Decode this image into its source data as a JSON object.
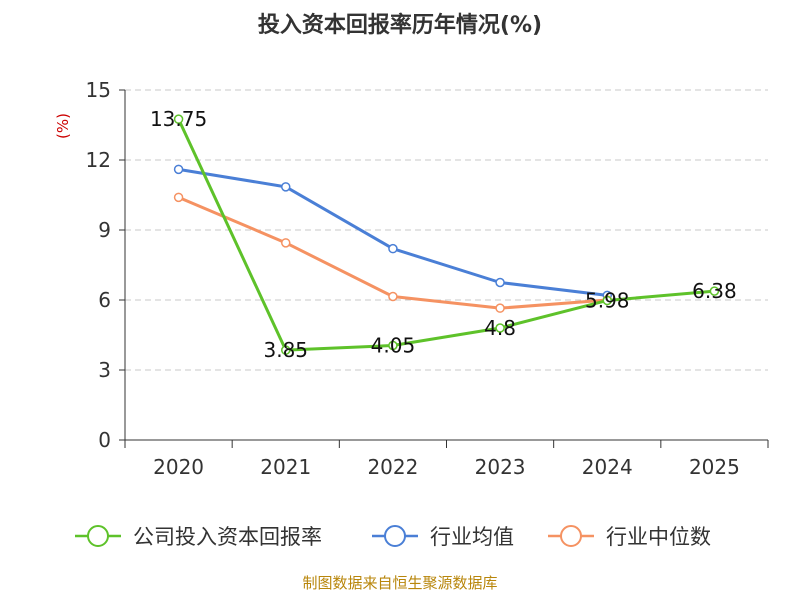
{
  "chart_data": {
    "type": "line",
    "title": "投入资本回报率历年情况(%)",
    "ylabel": "(%)",
    "xlabel": "",
    "categories": [
      "2020",
      "2021",
      "2022",
      "2023",
      "2024",
      "2025"
    ],
    "y_ticks": [
      "0",
      "3",
      "6",
      "9",
      "12",
      "15"
    ],
    "ylim": [
      0,
      15
    ],
    "grid": true,
    "legend_position": "bottom",
    "series": [
      {
        "name": "公司投入资本回报率",
        "color": "#5ec22a",
        "values": [
          13.75,
          3.85,
          4.05,
          4.8,
          5.98,
          6.38
        ],
        "labels": [
          "13.75",
          "3.85",
          "4.05",
          "4.8",
          "5.98",
          "6.38"
        ]
      },
      {
        "name": "行业均值",
        "color": "#4a7fd6",
        "values": [
          11.6,
          10.85,
          8.2,
          6.75,
          6.2,
          null
        ]
      },
      {
        "name": "行业中位数",
        "color": "#f59262",
        "values": [
          10.4,
          8.45,
          6.15,
          5.65,
          6.0,
          null
        ]
      }
    ],
    "source": "制图数据来自恒生聚源数据库"
  }
}
